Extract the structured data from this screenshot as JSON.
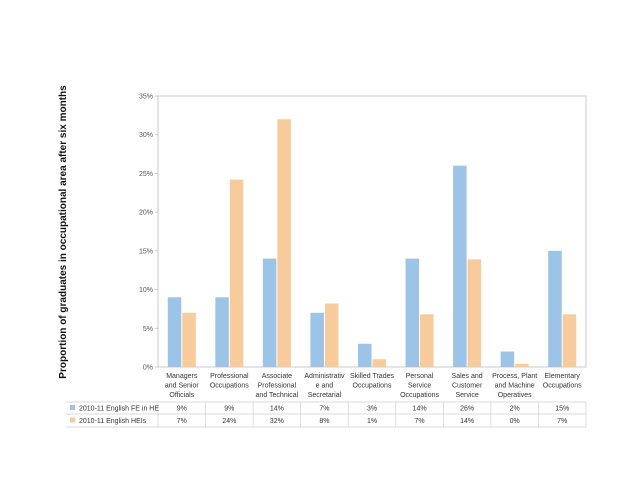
{
  "chart_data": {
    "type": "bar",
    "title": "",
    "ylabel": "Proportion of graduates in occupational area after six months",
    "xlabel": "",
    "ylim": [
      0,
      35
    ],
    "yticks": [
      "0%",
      "5%",
      "10%",
      "15%",
      "20%",
      "25%",
      "30%",
      "35%"
    ],
    "ytick_values": [
      0,
      5,
      10,
      15,
      20,
      25,
      30,
      35
    ],
    "grid": false,
    "legend": "data-table-left",
    "categories": [
      [
        "Managers",
        "and Senior",
        "Officials"
      ],
      [
        "Professional",
        "Occupations"
      ],
      [
        "Associate",
        "Professional",
        "and Technical"
      ],
      [
        "Administrativ",
        "e and",
        "Secretarial"
      ],
      [
        "Skilled Trades",
        "Occupations"
      ],
      [
        "Personal",
        "Service",
        "Occupations"
      ],
      [
        "Sales and",
        "Customer",
        "Service"
      ],
      [
        "Process, Plant",
        "and Machine",
        "Operatives"
      ],
      [
        "Elementary",
        "Occupations"
      ]
    ],
    "series": [
      {
        "name": "2010-11 English FE in HE",
        "color": "#9dc3e6",
        "values": [
          9,
          9,
          14,
          7,
          3,
          14,
          26,
          2,
          15
        ],
        "labels": [
          "9%",
          "9%",
          "14%",
          "7%",
          "3%",
          "14%",
          "26%",
          "2%",
          "15%"
        ]
      },
      {
        "name": "2010-11 English HEIs",
        "color": "#f8cb9c",
        "values": [
          7,
          24.2,
          32,
          8.2,
          1,
          6.8,
          13.9,
          0.4,
          6.8
        ],
        "labels": [
          "7%",
          "24%",
          "32%",
          "8%",
          "1%",
          "7%",
          "14%",
          "0%",
          "7%"
        ]
      }
    ]
  }
}
